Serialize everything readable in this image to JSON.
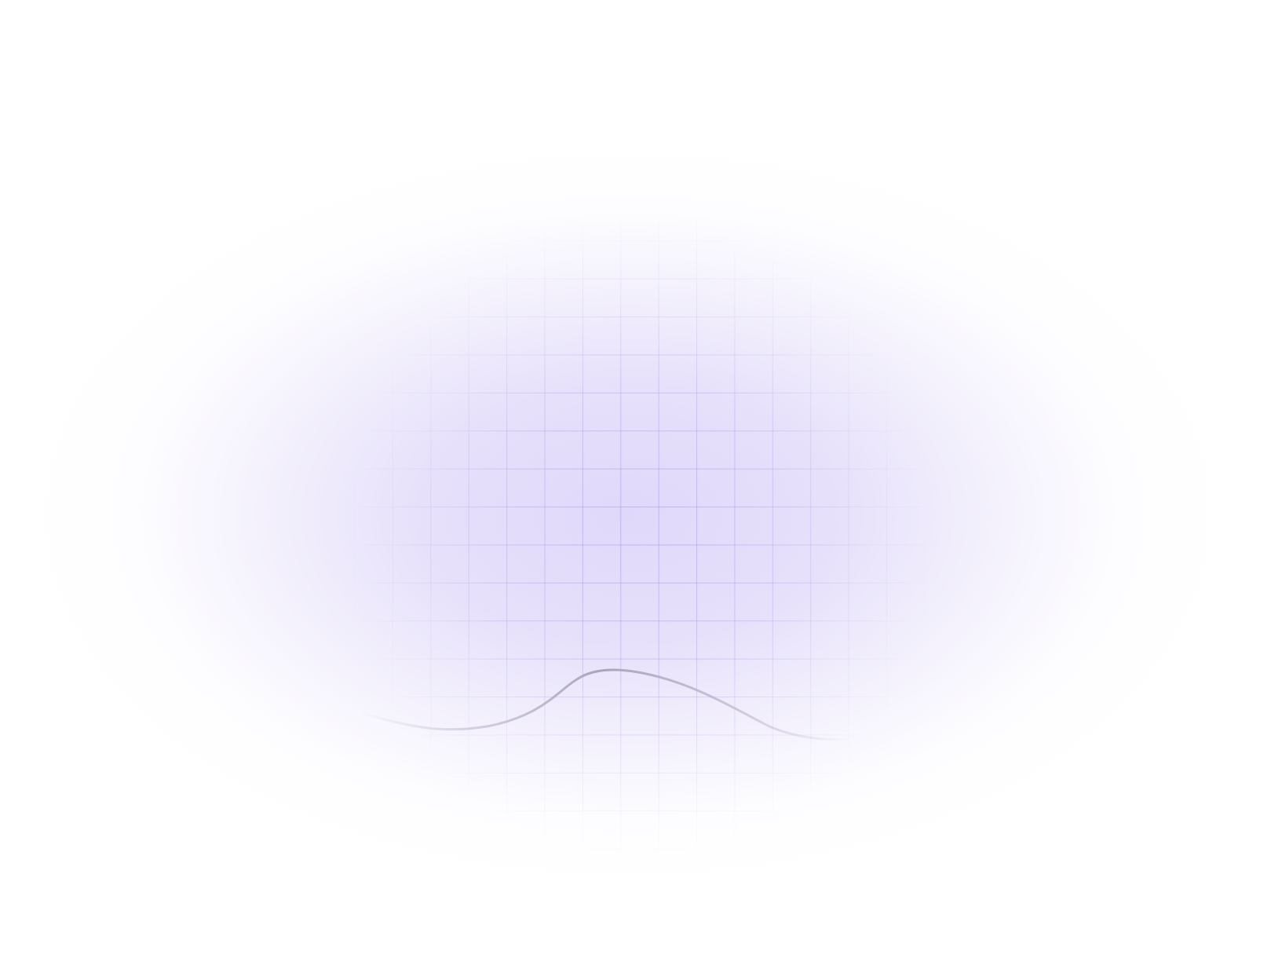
{
  "colors": {
    "background": "#ffffff",
    "glow": "#e2dbfa",
    "grid_line": "#9682eb",
    "curve": "#b8b2c8"
  }
}
